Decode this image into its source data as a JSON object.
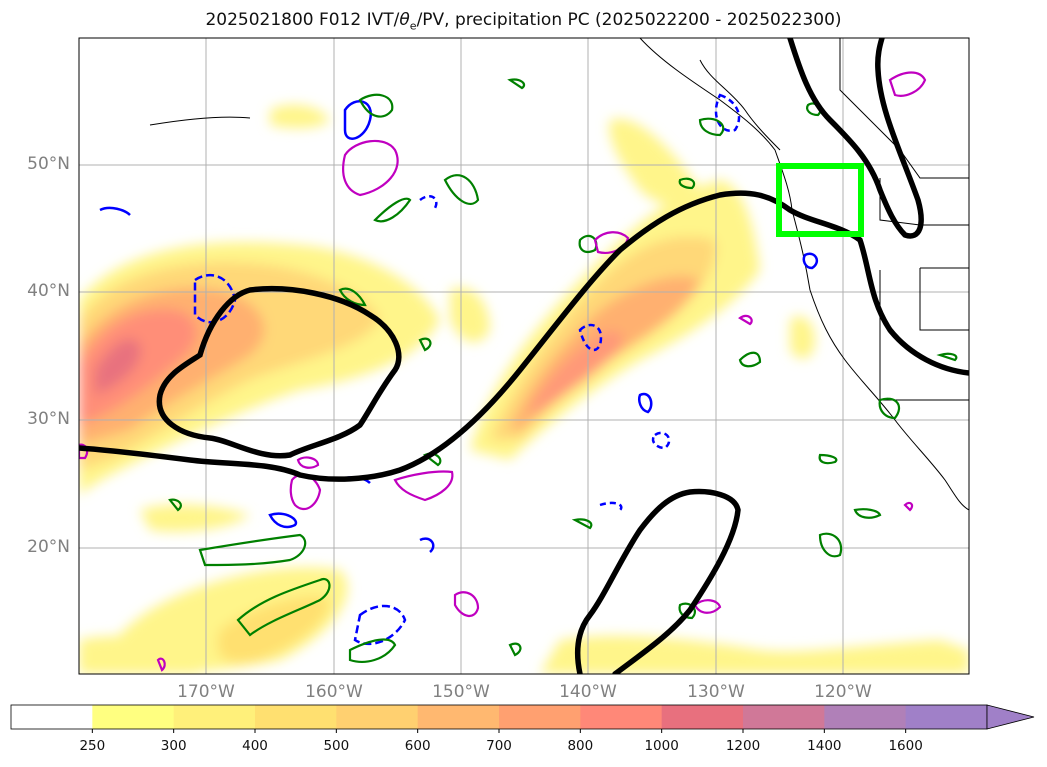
{
  "title_parts": {
    "prefix": "2025021800 F012 IVT/",
    "theta": "θ",
    "sub": "e",
    "suffix": "/PV, precipitation PC (2025022200 - 2025022300)"
  },
  "map": {
    "lat_labels": [
      "50°N",
      "40°N",
      "30°N",
      "20°N"
    ],
    "lon_labels": [
      "170°W",
      "160°W",
      "150°W",
      "140°W",
      "130°W",
      "120°W"
    ],
    "highlight_box_color": "#00ff00",
    "ivt_contour_color": "#000000",
    "theta_contour_color": "#008000",
    "pv_contour_color": "#0000ff",
    "precip_contour_color": "#c000c0"
  },
  "colorbar": {
    "levels": [
      "250",
      "300",
      "400",
      "500",
      "600",
      "700",
      "800",
      "1000",
      "1200",
      "1400",
      "1600"
    ],
    "colors": [
      "#ffffff",
      "#ffff80",
      "#fff07a",
      "#ffe070",
      "#ffd070",
      "#ffb870",
      "#ffa070",
      "#ff8878",
      "#e8707e",
      "#d07898",
      "#b080b8",
      "#a080c8"
    ]
  }
}
